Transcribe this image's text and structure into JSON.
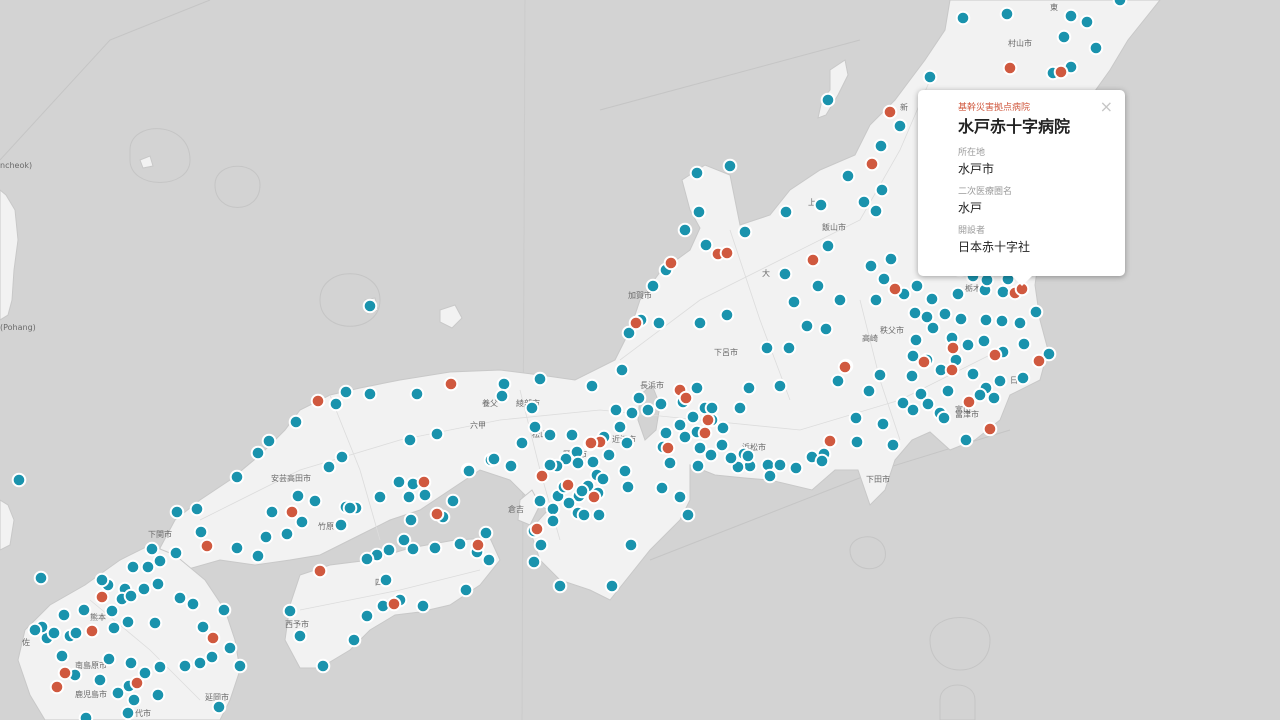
{
  "popup": {
    "category": "基幹災害拠点病院",
    "title": "水戸赤十字病院",
    "close_icon": "×",
    "fields": [
      {
        "label": "所在地",
        "value": "水戸市"
      },
      {
        "label": "二次医療圏名",
        "value": "水戸"
      },
      {
        "label": "開設者",
        "value": "日本赤十字社"
      }
    ]
  },
  "legend_colors": {
    "base_hospital": "#d0593f",
    "regional_hospital": "#1a93ad"
  },
  "map_labels": [
    "村山市",
    "上",
    "飯山市",
    "大",
    "加賀市",
    "下呂市",
    "秩父市",
    "富津市",
    "下田市",
    "長浜市",
    "近江市",
    "綾部市",
    "養父",
    "六甲",
    "松山市",
    "岡山市",
    "倉吉",
    "安芸高田市",
    "竹原",
    "下関市",
    "西予市",
    "四国",
    "延岡市",
    "鹿児島市",
    "南島原市",
    "佐",
    "代市",
    "(Pohang)",
    "ncheok)",
    "栃木",
    "日市",
    "高崎",
    "浜松市",
    "新",
    "東",
    "熊本",
    "富山"
  ]
}
